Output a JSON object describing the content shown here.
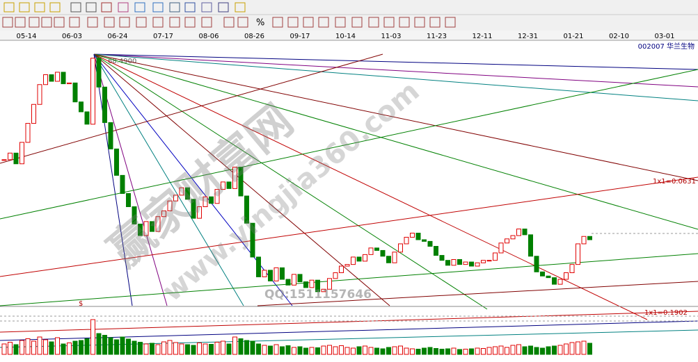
{
  "toolbar": {
    "percent_label": "%"
  },
  "date_axis": {
    "labels": [
      "05-14",
      "06-03",
      "06-24",
      "07-17",
      "08-06",
      "08-26",
      "09-17",
      "10-14",
      "11-03",
      "11-23",
      "12-11",
      "12-31",
      "01-21",
      "02-10",
      "03-01"
    ]
  },
  "stock_label": "002007  华兰生物",
  "annotations": {
    "fan_origin": "68.4900",
    "upper_ratio": "1x1=0.0631",
    "lower_ratio": "1x1=0.1902",
    "marker": "$"
  },
  "watermark": {
    "main": "赢家财富网",
    "url": "www.yingjia360.com",
    "qq": "QQ:1511157646"
  },
  "chart_data": {
    "type": "candlestick",
    "values": [
      55.7,
      56.5,
      55.2,
      57.8,
      60.1,
      62.4,
      64.8,
      66.0,
      65.2,
      66.3,
      64.9,
      65.0,
      62.7,
      61.5,
      60.0,
      68.0,
      64.5,
      60.2,
      57.0,
      53.8,
      51.6,
      50.0,
      47.9,
      46.5,
      48.2,
      47.0,
      48.8,
      49.5,
      50.7,
      51.4,
      52.3,
      50.9,
      48.6,
      50.0,
      51.2,
      50.4,
      52.1,
      53.0,
      52.2,
      54.8,
      51.3,
      48.0,
      43.9,
      41.5,
      42.3,
      41.0,
      42.6,
      41.2,
      40.5,
      41.8,
      40.9,
      40.2,
      41.1,
      39.7,
      40.0,
      41.3,
      42.0,
      42.8,
      43.0,
      43.9,
      43.4,
      44.2,
      45.0,
      44.7,
      44.0,
      43.2,
      44.5,
      45.5,
      46.3,
      46.8,
      46.0,
      45.8,
      45.2,
      44.1,
      43.5,
      42.9,
      43.6,
      43.0,
      43.3,
      42.8,
      43.2,
      43.5,
      43.5,
      44.4,
      45.6,
      46.1,
      46.5,
      47.3,
      46.6,
      44.0,
      42.1,
      41.6,
      41.4,
      40.6,
      41.2,
      42.0,
      43.0,
      45.5,
      46.4,
      46.0
    ],
    "volume": [
      30,
      35,
      28,
      40,
      45,
      38,
      50,
      42,
      36,
      48,
      30,
      33,
      38,
      40,
      45,
      100,
      60,
      55,
      48,
      42,
      50,
      44,
      38,
      35,
      30,
      32,
      28,
      36,
      40,
      34,
      30,
      28,
      26,
      33,
      30,
      29,
      35,
      38,
      30,
      50,
      45,
      40,
      38,
      30,
      26,
      24,
      28,
      22,
      25,
      20,
      22,
      18,
      20,
      19,
      24,
      26,
      22,
      25,
      20,
      18,
      22,
      24,
      20,
      18,
      16,
      20,
      22,
      24,
      18,
      16,
      15,
      18,
      20,
      17,
      15,
      16,
      18,
      14,
      15,
      16,
      18,
      17,
      20,
      22,
      24,
      20,
      26,
      28,
      22,
      24,
      20,
      18,
      22,
      24,
      26,
      30,
      34,
      36,
      38,
      32
    ],
    "ylim": [
      38,
      70
    ],
    "up_color": "#e00000",
    "down_color": "#008000"
  }
}
